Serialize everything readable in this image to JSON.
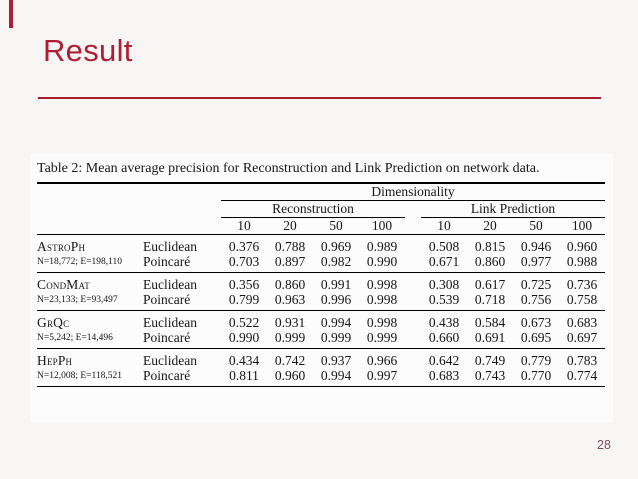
{
  "slide": {
    "title": "Result",
    "page_number": "28",
    "accent_color": "#b01e33",
    "background_color": "#f8f5f5"
  },
  "table": {
    "caption": "Table 2: Mean average precision for Reconstruction and Link Prediction on network data.",
    "header": {
      "dimensionality_label": "Dimensionality",
      "group_labels": [
        "Reconstruction",
        "Link Prediction"
      ],
      "dim_columns": [
        "10",
        "20",
        "50",
        "100"
      ]
    },
    "model_labels": {
      "euclidean": "Euclidean",
      "poincare": "Poincaré"
    },
    "rows": [
      {
        "network": "AstroPh",
        "stats": "N=18,772; E=198,110",
        "euclidean": [
          "0.376",
          "0.788",
          "0.969",
          "0.989",
          "0.508",
          "0.815",
          "0.946",
          "0.960"
        ],
        "poincare": [
          "0.703",
          "0.897",
          "0.982",
          "0.990",
          "0.671",
          "0.860",
          "0.977",
          "0.988"
        ]
      },
      {
        "network": "CondMat",
        "stats": "N=23,133; E=93,497",
        "euclidean": [
          "0.356",
          "0.860",
          "0.991",
          "0.998",
          "0.308",
          "0.617",
          "0.725",
          "0.736"
        ],
        "poincare": [
          "0.799",
          "0.963",
          "0.996",
          "0.998",
          "0.539",
          "0.718",
          "0.756",
          "0.758"
        ]
      },
      {
        "network": "GrQc",
        "stats": "N=5,242; E=14,496",
        "euclidean": [
          "0.522",
          "0.931",
          "0.994",
          "0.998",
          "0.438",
          "0.584",
          "0.673",
          "0.683"
        ],
        "poincare": [
          "0.990",
          "0.999",
          "0.999",
          "0.999",
          "0.660",
          "0.691",
          "0.695",
          "0.697"
        ]
      },
      {
        "network": "HepPh",
        "stats": "N=12,008; E=118,521",
        "euclidean": [
          "0.434",
          "0.742",
          "0.937",
          "0.966",
          "0.642",
          "0.749",
          "0.779",
          "0.783"
        ],
        "poincare": [
          "0.811",
          "0.960",
          "0.994",
          "0.997",
          "0.683",
          "0.743",
          "0.770",
          "0.774"
        ]
      }
    ]
  }
}
